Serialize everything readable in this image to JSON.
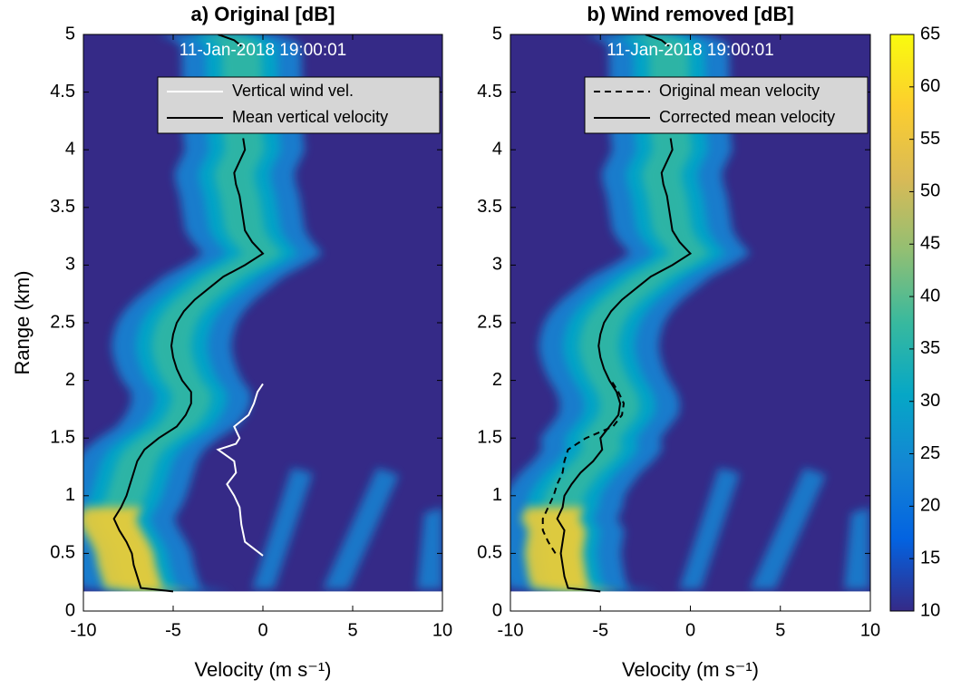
{
  "chart_data": [
    {
      "type": "heatmap",
      "title": "a) Original [dB]",
      "annotation": "11-Jan-2018 19:00:01",
      "xlabel": "Velocity (m s⁻¹)",
      "ylabel": "Range (km)",
      "xlim": [
        -10,
        10
      ],
      "xticks": [
        -10,
        -5,
        0,
        5,
        10
      ],
      "ylim": [
        0,
        5
      ],
      "yticks": [
        0,
        0.5,
        1,
        1.5,
        2,
        2.5,
        3,
        3.5,
        4,
        4.5,
        5
      ],
      "series": [
        {
          "name": "Vertical wind vel.",
          "color": "#ffffff",
          "linestyle": "solid",
          "range": [
            0.48,
            0.6,
            0.75,
            0.9,
            1.0,
            1.1,
            1.2,
            1.3,
            1.4,
            1.45,
            1.5,
            1.6,
            1.7,
            1.8,
            1.9,
            1.97
          ],
          "velocity": [
            0,
            -1,
            -1.2,
            -1.3,
            -1.6,
            -2,
            -1.5,
            -1.6,
            -2.5,
            -1.5,
            -1.3,
            -1.6,
            -0.8,
            -0.5,
            -0.3,
            0
          ]
        },
        {
          "name": "Mean vertical velocity",
          "color": "#000000",
          "linestyle": "solid",
          "range": [
            0.17,
            0.2,
            0.3,
            0.4,
            0.5,
            0.6,
            0.7,
            0.8,
            0.9,
            1.0,
            1.1,
            1.2,
            1.3,
            1.4,
            1.5,
            1.6,
            1.7,
            1.8,
            1.9,
            2.0,
            2.1,
            2.2,
            2.3,
            2.4,
            2.5,
            2.6,
            2.7,
            2.8,
            2.9,
            3.0,
            3.1,
            3.2,
            3.3,
            3.4,
            3.5,
            3.6,
            3.7,
            3.8,
            3.9,
            4.0,
            4.1,
            4.2,
            4.9,
            4.95,
            5.0
          ],
          "velocity": [
            -5,
            -6.8,
            -7,
            -7.2,
            -7.3,
            -7.6,
            -8,
            -8.3,
            -7.9,
            -7.6,
            -7.4,
            -7.2,
            -7,
            -6.6,
            -5.8,
            -4.8,
            -4.3,
            -4,
            -4,
            -4.5,
            -4.8,
            -5,
            -5.1,
            -5,
            -4.8,
            -4.4,
            -3.8,
            -3,
            -2.2,
            -1,
            0,
            -0.6,
            -1,
            -1.1,
            -1.2,
            -1.3,
            -1.5,
            -1.6,
            -1.3,
            -1,
            -1.1,
            null,
            -1.2,
            -1.6,
            -2.5
          ]
        }
      ]
    },
    {
      "type": "heatmap",
      "title": "b) Wind removed [dB]",
      "annotation": "11-Jan-2018 19:00:01",
      "xlabel": "Velocity (m s⁻¹)",
      "xlim": [
        -10,
        10
      ],
      "xticks": [
        -10,
        -5,
        0,
        5,
        10
      ],
      "ylim": [
        0,
        5
      ],
      "yticks": [
        0,
        0.5,
        1,
        1.5,
        2,
        2.5,
        3,
        3.5,
        4,
        4.5,
        5
      ],
      "series": [
        {
          "name": "Original mean velocity",
          "color": "#000000",
          "linestyle": "dashed",
          "range": [
            0.5,
            0.6,
            0.7,
            0.8,
            0.9,
            1.0,
            1.1,
            1.2,
            1.3,
            1.4,
            1.5,
            1.6,
            1.7,
            1.8,
            1.9,
            2.0
          ],
          "velocity": [
            -7.5,
            -7.9,
            -8.2,
            -8.2,
            -7.9,
            -7.6,
            -7.4,
            -7.1,
            -7,
            -6.8,
            -5.8,
            -4.3,
            -3.8,
            -3.7,
            -4,
            -4.4
          ]
        },
        {
          "name": "Corrected mean velocity",
          "color": "#000000",
          "linestyle": "solid",
          "range": [
            0.17,
            0.2,
            0.3,
            0.4,
            0.5,
            0.6,
            0.7,
            0.8,
            0.9,
            1.0,
            1.1,
            1.2,
            1.3,
            1.4,
            1.5,
            1.6,
            1.7,
            1.8,
            1.9,
            2.0,
            2.1,
            2.2,
            2.3,
            2.4,
            2.5,
            2.6,
            2.7,
            2.8,
            2.9,
            3.0,
            3.1,
            3.2,
            3.3,
            3.4,
            3.5,
            3.6,
            3.7,
            3.8,
            3.9,
            4.0,
            4.1,
            4.2,
            4.9,
            4.95,
            5.0
          ],
          "velocity": [
            -5,
            -6.8,
            -7,
            -7.1,
            -7.2,
            -7.1,
            -7,
            -7.4,
            -7.1,
            -7,
            -6.6,
            -6.1,
            -5.4,
            -4.9,
            -5,
            -4.5,
            -4,
            -3.9,
            -4.1,
            -4.5,
            -4.8,
            -5,
            -5.1,
            -5,
            -4.8,
            -4.4,
            -3.8,
            -3,
            -2.2,
            -1,
            0,
            -0.6,
            -1,
            -1.1,
            -1.2,
            -1.3,
            -1.5,
            -1.6,
            -1.3,
            -1,
            -1.1,
            null,
            -1.2,
            -1.6,
            -2.5
          ]
        }
      ],
      "colorbar": {
        "lim": [
          10,
          65
        ],
        "ticks": [
          10,
          15,
          20,
          25,
          30,
          35,
          40,
          45,
          50,
          55,
          60,
          65
        ],
        "colormap": [
          "#352a87",
          "#0363e1",
          "#1485d4",
          "#06a7c6",
          "#38b99e",
          "#92bf73",
          "#d9ba56",
          "#fcce2e",
          "#f9fb0e"
        ]
      }
    }
  ]
}
